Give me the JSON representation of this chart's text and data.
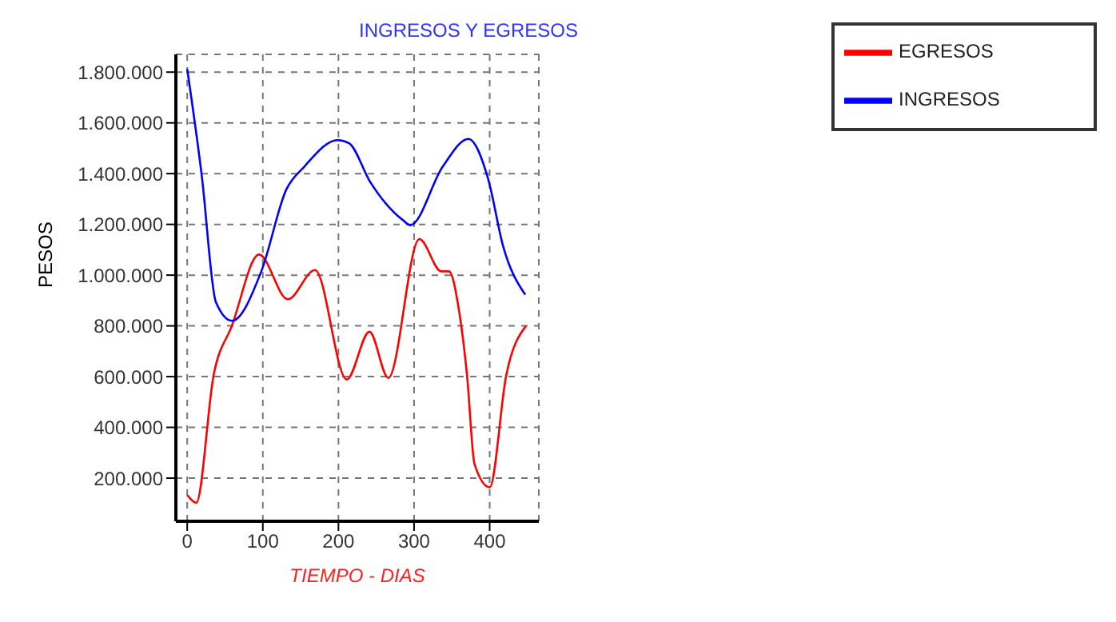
{
  "chart_data": {
    "type": "line",
    "title": "INGRESOS Y EGRESOS",
    "xlabel": "TIEMPO - DIAS",
    "ylabel": "PESOS",
    "xlim": [
      -15,
      465
    ],
    "xticks": [
      0,
      100,
      200,
      300,
      400
    ],
    "ylim": [
      30000,
      1870000
    ],
    "yticks": [
      {
        "value": 200000,
        "label": "200.000"
      },
      {
        "value": 400000,
        "label": "400.000"
      },
      {
        "value": 600000,
        "label": "600.000"
      },
      {
        "value": 800000,
        "label": "800.000"
      },
      {
        "value": 1000000,
        "label": "1.000.000"
      },
      {
        "value": 1200000,
        "label": "1.200.000"
      },
      {
        "value": 1400000,
        "label": "1.400.000"
      },
      {
        "value": 1600000,
        "label": "1.600.000"
      },
      {
        "value": 1800000,
        "label": "1.800.000"
      }
    ],
    "grid": true,
    "legend": "top right",
    "marker": "none",
    "line_style": "solid",
    "series": [
      {
        "name": "EGRESOS",
        "color": "#ff0000",
        "x": [
          0,
          12,
          35,
          59,
          95,
          133,
          169,
          211,
          241,
          266,
          307,
          336,
          346,
          360,
          370,
          380,
          400,
          422,
          448
        ],
        "values": [
          133000,
          103000,
          607000,
          800000,
          1081000,
          905000,
          1020000,
          589000,
          777000,
          595000,
          1142000,
          1015000,
          1015000,
          850000,
          607000,
          255000,
          164000,
          607000,
          800000
        ]
      },
      {
        "name": "INGRESOS",
        "color": "#0000ff",
        "x": [
          0,
          19,
          38,
          59,
          98,
          131,
          155,
          199,
          214,
          242,
          286,
          295,
          338,
          372,
          398,
          418,
          447
        ],
        "values": [
          1812000,
          1398000,
          893000,
          820000,
          1015000,
          1337000,
          1428000,
          1532000,
          1520000,
          1367000,
          1215000,
          1197000,
          1428000,
          1537000,
          1379000,
          1112000,
          923000
        ]
      }
    ]
  }
}
